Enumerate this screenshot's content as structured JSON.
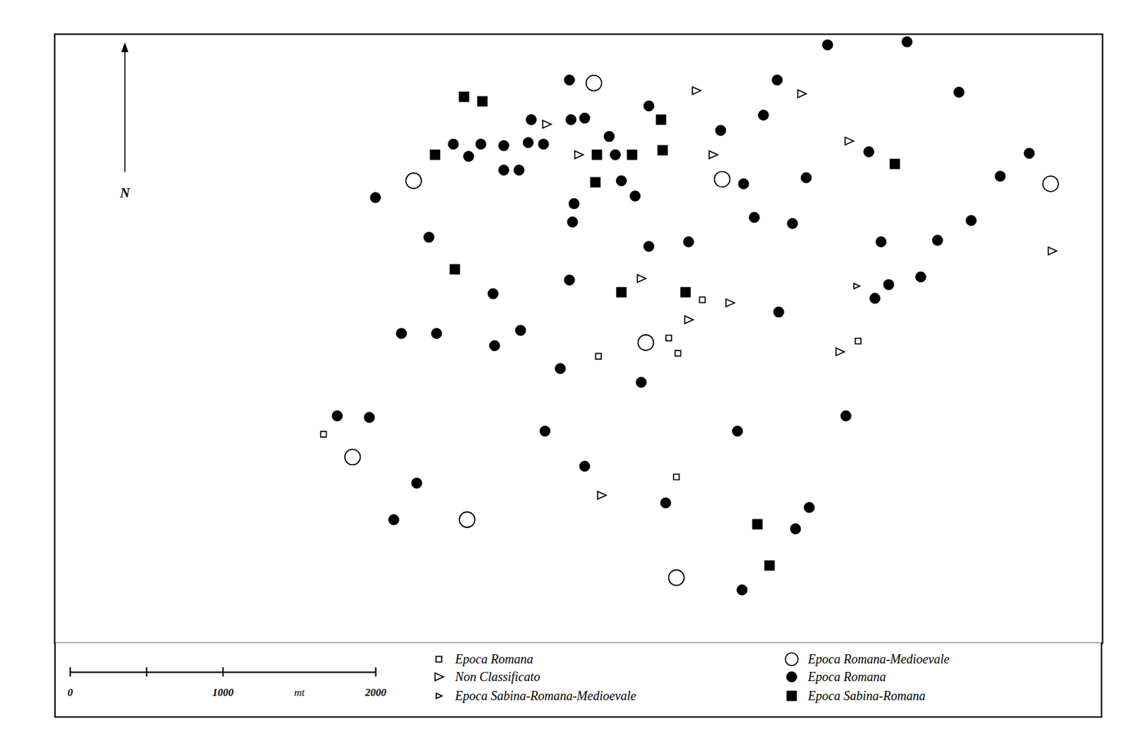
{
  "chart_data": {
    "type": "scatter",
    "xlim": [
      0,
      6860
    ],
    "ylim": [
      0,
      3990
    ],
    "tick_labels": false,
    "north_label": "N",
    "scale_bar": {
      "range": [
        0,
        2000
      ],
      "ticks": [
        0,
        1000,
        2000
      ],
      "minor_ticks": [
        500
      ],
      "unit": "mt"
    },
    "series": [
      {
        "name": "Epoca Romana",
        "marker": "square-open-small",
        "color": "#000000",
        "x": [
          4240,
          4020,
          4080,
          3560,
          5260,
          1760,
          4070
        ],
        "y": [
          2250,
          2000,
          1900,
          1880,
          1980,
          1370,
          1090
        ]
      },
      {
        "name": "Non Classificato",
        "marker": "triangle-right-open",
        "color": "#000000",
        "x": [
          4200,
          4890,
          3220,
          5200,
          3430,
          4310,
          3840,
          4420,
          4150,
          6530,
          5140,
          3580
        ],
        "y": [
          3620,
          3600,
          3400,
          3290,
          3200,
          3200,
          2390,
          2230,
          2120,
          2570,
          1910,
          970
        ]
      },
      {
        "name": "Epoca Sabina-Romana-Medioevale",
        "marker": "triangle-right-open-small",
        "color": "#000000",
        "x": [
          5250
        ],
        "y": [
          2340
        ]
      },
      {
        "name": "Epoca Romana-Medioevale",
        "marker": "circle-open",
        "color": "#000000",
        "x": [
          3530,
          2350,
          4370,
          6520,
          3870,
          1950,
          2700,
          4070
        ],
        "y": [
          3670,
          3030,
          3040,
          3010,
          1970,
          1220,
          810,
          430
        ]
      },
      {
        "name": "Epoca Romana",
        "marker": "circle",
        "color": "#000000",
        "x": [
          5060,
          5580,
          3370,
          4730,
          5920,
          3890,
          4640,
          3120,
          3380,
          3470,
          4360,
          3630,
          2610,
          2790,
          2940,
          3100,
          3200,
          2710,
          3670,
          5330,
          6380,
          2940,
          3040,
          3710,
          4510,
          4920,
          6190,
          3800,
          2100,
          3400,
          3390,
          4580,
          4830,
          6000,
          2450,
          4150,
          3890,
          5410,
          5780,
          3370,
          5670,
          5460,
          2870,
          5370,
          4740,
          2270,
          2500,
          3050,
          2880,
          3310,
          3840,
          1850,
          2060,
          5180,
          3210,
          4470,
          3470,
          2370,
          4000,
          4940,
          4850,
          2220,
          4500
        ],
        "y": [
          3920,
          3940,
          3690,
          3690,
          3610,
          3520,
          3460,
          3430,
          3430,
          3440,
          3360,
          3320,
          3270,
          3270,
          3260,
          3280,
          3270,
          3190,
          3200,
          3220,
          3210,
          3100,
          3100,
          3030,
          3010,
          3050,
          3060,
          2930,
          2920,
          2880,
          2760,
          2790,
          2750,
          2770,
          2660,
          2630,
          2600,
          2630,
          2640,
          2380,
          2400,
          2350,
          2290,
          2260,
          2170,
          2030,
          2030,
          2050,
          1950,
          1800,
          1710,
          1490,
          1480,
          1490,
          1390,
          1390,
          1160,
          1050,
          920,
          890,
          750,
          810,
          350
        ]
      },
      {
        "name": "Epoca Sabina-Romana",
        "marker": "square",
        "color": "#000000",
        "x": [
          2680,
          2800,
          3970,
          2490,
          3550,
          3780,
          3980,
          5500,
          3540,
          2620,
          3710,
          4130,
          4600,
          4680
        ],
        "y": [
          3580,
          3550,
          3430,
          3200,
          3200,
          3200,
          3230,
          3140,
          3020,
          2450,
          2300,
          2300,
          780,
          510
        ]
      }
    ]
  }
}
